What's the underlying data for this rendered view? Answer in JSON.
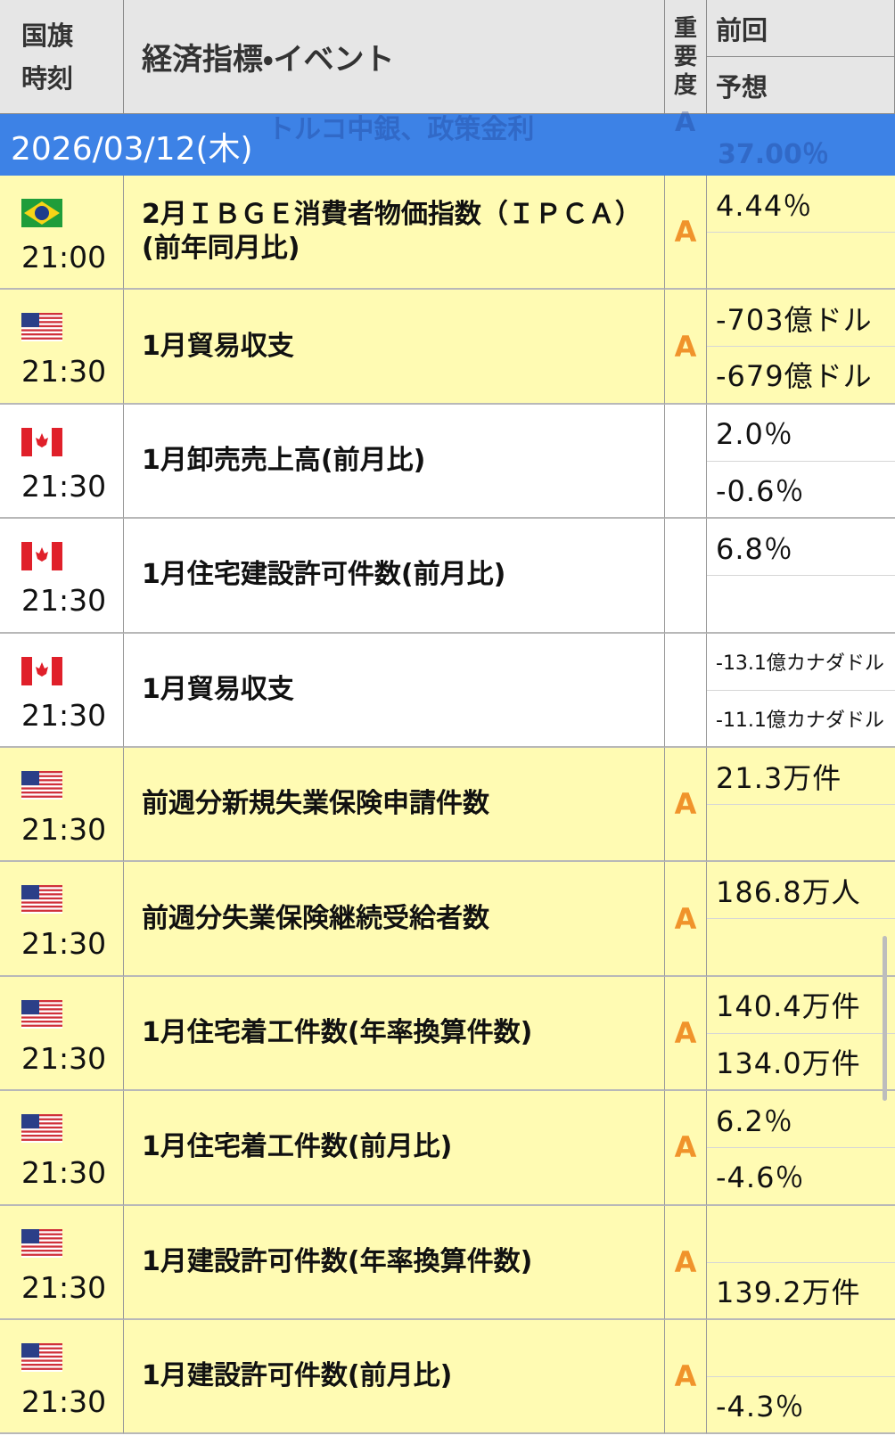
{
  "header": {
    "col1": "国旗\n時刻",
    "col2": "経済指標・イベント",
    "col3": "重\n要\n度",
    "col4a": "前回",
    "col4b": "予想"
  },
  "scrolled_under": {
    "event": "トルコ中銀、政策金利",
    "importance": "A",
    "forecast": "37.00％"
  },
  "date": "2026/03/12(木)",
  "rows": [
    {
      "flag": "br",
      "time": "21:00",
      "event": "2月ＩＢＧＥ消費者物価指数（ＩＰＣＡ）\n(前年同月比)",
      "importance": "A",
      "previous": "4.44％",
      "forecast": null
    },
    {
      "flag": "us",
      "time": "21:30",
      "event": "1月貿易収支",
      "importance": "A",
      "previous": "-703億ドル",
      "forecast": "-679億ドル"
    },
    {
      "flag": "ca",
      "time": "21:30",
      "event": "1月卸売売上高(前月比)",
      "importance": null,
      "previous": "2.0％",
      "forecast": "-0.6％"
    },
    {
      "flag": "ca",
      "time": "21:30",
      "event": "1月住宅建設許可件数(前月比)",
      "importance": null,
      "previous": "6.8％",
      "forecast": null
    },
    {
      "flag": "ca",
      "time": "21:30",
      "event": "1月貿易収支",
      "importance": null,
      "previous": "-13.1億カナダドル",
      "forecast": "-11.1億カナダドル"
    },
    {
      "flag": "us",
      "time": "21:30",
      "event": "前週分新規失業保険申請件数",
      "importance": "A",
      "previous": "21.3万件",
      "forecast": null
    },
    {
      "flag": "us",
      "time": "21:30",
      "event": "前週分失業保険継続受給者数",
      "importance": "A",
      "previous": "186.8万人",
      "forecast": null
    },
    {
      "flag": "us",
      "time": "21:30",
      "event": "1月住宅着工件数(年率換算件数)",
      "importance": "A",
      "previous": "140.4万件",
      "forecast": "134.0万件"
    },
    {
      "flag": "us",
      "time": "21:30",
      "event": "1月住宅着工件数(前月比)",
      "importance": "A",
      "previous": "6.2％",
      "forecast": "-4.6％"
    },
    {
      "flag": "us",
      "time": "21:30",
      "event": "1月建設許可件数(年率換算件数)",
      "importance": "A",
      "previous": null,
      "forecast": "139.2万件"
    },
    {
      "flag": "us",
      "time": "21:30",
      "event": "1月建設許可件数(前月比)",
      "importance": "A",
      "previous": null,
      "forecast": "-4.3％"
    }
  ]
}
